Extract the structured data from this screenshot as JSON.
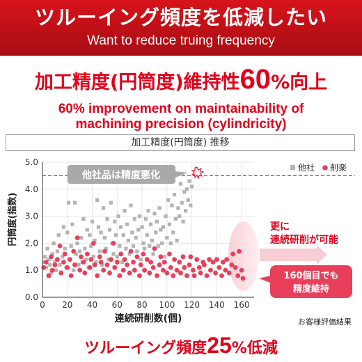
{
  "banner": {
    "title_jp": "ツルーイング頻度を低減したい",
    "title_en": "Want to reduce truing frequency"
  },
  "headline": {
    "prefix": "加工精度(円筒度)維持性",
    "number": "60",
    "percent": "%",
    "suffix": "向上"
  },
  "subheadline": {
    "line1": "60% improvement on maintainability of",
    "line2": "machining precision (cylindricity)"
  },
  "chart_title": "加工精度(円筒度) 推移",
  "footer": {
    "prefix": "ツルーイング頻度",
    "number": "25",
    "percent": "%",
    "suffix": "低減"
  },
  "colors": {
    "accent_red": "#e2001a",
    "series_other": "#b3b3b3",
    "series_ours": "#e8405a",
    "balloon_gray": "#a9a9a9"
  },
  "chart_data": {
    "type": "scatter",
    "xlabel": "連続研削数(個)",
    "ylabel": "円筒度(指数)",
    "xlim": [
      0,
      170
    ],
    "ylim": [
      0,
      5.0
    ],
    "x_ticks": [
      "0",
      "20",
      "40",
      "60",
      "80",
      "100",
      "120",
      "140",
      "160"
    ],
    "y_ticks": [
      "0.0",
      "1.0",
      "2.0",
      "3.0",
      "4.0",
      "5.0"
    ],
    "threshold": 4.5,
    "legend": {
      "position": "top-right"
    },
    "source_note": "お客様評価結果",
    "annotations": {
      "other_worse": "他社品は精度悪化",
      "more_grinding_1": "更に",
      "more_grinding_2": "連続研削が可能",
      "maintain_1": "160個目でも",
      "maintain_2": "精度維持"
    },
    "series": [
      {
        "name": "他社",
        "color": "#b3b3b3",
        "marker": "square",
        "points": [
          [
            1,
            1.3
          ],
          [
            2,
            1.5
          ],
          [
            3,
            1.1
          ],
          [
            4,
            1.8
          ],
          [
            5,
            1.4
          ],
          [
            6,
            1.2
          ],
          [
            7,
            0.9
          ],
          [
            8,
            1.6
          ],
          [
            9,
            2.0
          ],
          [
            10,
            1.3
          ],
          [
            11,
            1.0
          ],
          [
            12,
            1.7
          ],
          [
            13,
            2.3
          ],
          [
            14,
            1.2
          ],
          [
            15,
            0.9
          ],
          [
            16,
            1.5
          ],
          [
            17,
            2.6
          ],
          [
            18,
            1.8
          ],
          [
            19,
            1.1
          ],
          [
            20,
            2.4
          ],
          [
            21,
            3.5
          ],
          [
            22,
            1.4
          ],
          [
            23,
            1.9
          ],
          [
            24,
            2.7
          ],
          [
            25,
            1.0
          ],
          [
            26,
            3.5
          ],
          [
            27,
            1.6
          ],
          [
            28,
            2.0
          ],
          [
            29,
            1.2
          ],
          [
            30,
            1.7
          ],
          [
            31,
            2.2
          ],
          [
            32,
            1.3
          ],
          [
            33,
            2.9
          ],
          [
            34,
            1.8
          ],
          [
            35,
            1.4
          ],
          [
            36,
            2.5
          ],
          [
            37,
            1.1
          ],
          [
            38,
            2.3
          ],
          [
            39,
            1.9
          ],
          [
            40,
            2.8
          ],
          [
            41,
            1.5
          ],
          [
            42,
            2.1
          ],
          [
            43,
            1.3
          ],
          [
            44,
            3.6
          ],
          [
            45,
            2.6
          ],
          [
            46,
            1.7
          ],
          [
            47,
            2.4
          ],
          [
            48,
            1.2
          ],
          [
            49,
            3.3
          ],
          [
            50,
            2.2
          ],
          [
            51,
            1.8
          ],
          [
            52,
            2.9
          ],
          [
            53,
            1.4
          ],
          [
            54,
            2.5
          ],
          [
            55,
            3.5
          ],
          [
            56,
            2.0
          ],
          [
            57,
            1.6
          ],
          [
            58,
            2.8
          ],
          [
            59,
            2.3
          ],
          [
            60,
            1.5
          ],
          [
            61,
            3.0
          ],
          [
            62,
            1.9
          ],
          [
            63,
            2.6
          ],
          [
            64,
            1.3
          ],
          [
            65,
            2.3
          ],
          [
            66,
            3.2
          ],
          [
            67,
            1.8
          ],
          [
            68,
            2.7
          ],
          [
            69,
            2.1
          ],
          [
            70,
            1.6
          ],
          [
            71,
            3.4
          ],
          [
            72,
            2.4
          ],
          [
            73,
            1.9
          ],
          [
            74,
            2.9
          ],
          [
            75,
            2.2
          ],
          [
            76,
            1.7
          ],
          [
            77,
            2.5
          ],
          [
            78,
            3.0
          ],
          [
            79,
            1.4
          ],
          [
            80,
            2.6
          ],
          [
            81,
            2.0
          ],
          [
            82,
            1.8
          ],
          [
            83,
            2.9
          ],
          [
            84,
            2.3
          ],
          [
            85,
            3.2
          ],
          [
            86,
            1.9
          ],
          [
            87,
            2.7
          ],
          [
            88,
            2.1
          ],
          [
            89,
            1.6
          ],
          [
            90,
            3.1
          ],
          [
            91,
            2.4
          ],
          [
            92,
            2.8
          ],
          [
            93,
            1.9
          ],
          [
            94,
            3.3
          ],
          [
            95,
            2.5
          ],
          [
            96,
            2.0
          ],
          [
            97,
            2.6
          ],
          [
            98,
            1.5
          ],
          [
            99,
            3.0
          ],
          [
            100,
            2.2
          ],
          [
            101,
            3.6
          ],
          [
            102,
            2.7
          ],
          [
            103,
            2.0
          ],
          [
            104,
            3.4
          ],
          [
            105,
            2.4
          ],
          [
            106,
            3.8
          ],
          [
            107,
            2.9
          ],
          [
            108,
            2.1
          ],
          [
            109,
            3.3
          ],
          [
            110,
            3.0
          ],
          [
            111,
            4.2
          ],
          [
            112,
            3.5
          ],
          [
            113,
            2.8
          ],
          [
            114,
            3.9
          ],
          [
            115,
            3.2
          ],
          [
            116,
            4.0
          ],
          [
            117,
            3.6
          ],
          [
            118,
            4.3
          ],
          [
            119,
            3.4
          ],
          [
            120,
            4.1
          ]
        ]
      },
      {
        "name": "削楽",
        "color": "#e8405a",
        "marker": "circle",
        "points": [
          [
            1,
            1.1
          ],
          [
            3,
            1.3
          ],
          [
            5,
            0.8
          ],
          [
            7,
            1.5
          ],
          [
            8,
            1.0
          ],
          [
            10,
            1.2
          ],
          [
            12,
            1.4
          ],
          [
            14,
            1.9
          ],
          [
            15,
            0.9
          ],
          [
            17,
            1.3
          ],
          [
            18,
            1.6
          ],
          [
            20,
            1.1
          ],
          [
            22,
            1.4
          ],
          [
            23,
            0.8
          ],
          [
            25,
            1.7
          ],
          [
            26,
            1.2
          ],
          [
            28,
            2.2
          ],
          [
            30,
            1.0
          ],
          [
            31,
            1.5
          ],
          [
            33,
            1.3
          ],
          [
            34,
            0.9
          ],
          [
            36,
            1.6
          ],
          [
            38,
            1.1
          ],
          [
            39,
            1.4
          ],
          [
            41,
            2.0
          ],
          [
            42,
            1.2
          ],
          [
            44,
            0.8
          ],
          [
            46,
            1.5
          ],
          [
            47,
            1.3
          ],
          [
            49,
            1.0
          ],
          [
            50,
            1.7
          ],
          [
            52,
            1.2
          ],
          [
            54,
            0.9
          ],
          [
            55,
            1.4
          ],
          [
            57,
            2.0
          ],
          [
            58,
            1.1
          ],
          [
            60,
            1.3
          ],
          [
            62,
            0.8
          ],
          [
            63,
            1.6
          ],
          [
            65,
            1.0
          ],
          [
            66,
            1.4
          ],
          [
            68,
            1.2
          ],
          [
            70,
            0.9
          ],
          [
            71,
            1.7
          ],
          [
            73,
            1.3
          ],
          [
            74,
            1.0
          ],
          [
            76,
            1.5
          ],
          [
            78,
            0.8
          ],
          [
            79,
            1.2
          ],
          [
            81,
            1.6
          ],
          [
            82,
            1.0
          ],
          [
            84,
            1.4
          ],
          [
            86,
            0.9
          ],
          [
            87,
            1.3
          ],
          [
            89,
            1.1
          ],
          [
            90,
            1.8
          ],
          [
            92,
            0.8
          ],
          [
            94,
            1.2
          ],
          [
            95,
            1.5
          ],
          [
            97,
            1.0
          ],
          [
            98,
            1.3
          ],
          [
            100,
            0.9
          ],
          [
            102,
            1.6
          ],
          [
            103,
            1.1
          ],
          [
            105,
            0.8
          ],
          [
            106,
            1.4
          ],
          [
            108,
            1.0
          ],
          [
            110,
            1.3
          ],
          [
            111,
            0.9
          ],
          [
            113,
            1.5
          ],
          [
            114,
            1.1
          ],
          [
            116,
            0.8
          ],
          [
            118,
            1.2
          ],
          [
            119,
            1.5
          ],
          [
            121,
            1.0
          ],
          [
            122,
            0.8
          ],
          [
            124,
            1.4
          ],
          [
            126,
            1.1
          ],
          [
            127,
            0.9
          ],
          [
            129,
            1.3
          ],
          [
            130,
            1.2
          ],
          [
            132,
            0.8
          ],
          [
            134,
            1.4
          ],
          [
            135,
            1.0
          ],
          [
            137,
            1.3
          ],
          [
            139,
            0.9
          ],
          [
            140,
            1.4
          ],
          [
            142,
            1.1
          ],
          [
            144,
            0.8
          ],
          [
            145,
            1.3
          ],
          [
            147,
            1.0
          ],
          [
            148,
            1.4
          ],
          [
            150,
            0.9
          ],
          [
            152,
            1.2
          ],
          [
            153,
            1.6
          ],
          [
            155,
            1.1
          ],
          [
            157,
            0.8
          ],
          [
            158,
            1.7
          ],
          [
            160,
            1.0
          ],
          [
            161,
            0.7
          ]
        ]
      }
    ]
  }
}
